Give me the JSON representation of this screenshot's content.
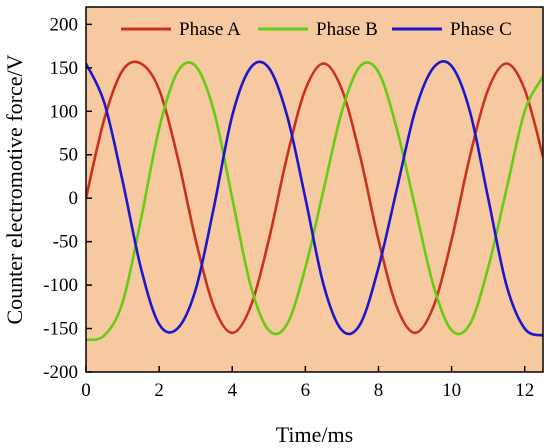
{
  "chart_data": {
    "type": "line",
    "xlabel": "Time/ms",
    "ylabel": "Counter electromotive force/V",
    "xlim": [
      0,
      12.5
    ],
    "ylim": [
      -200,
      220
    ],
    "xticks": [
      0,
      2,
      4,
      6,
      8,
      10,
      12
    ],
    "yticks": [
      -200,
      -150,
      -100,
      -50,
      0,
      50,
      100,
      150,
      200
    ],
    "grid": false,
    "legend_position": "top",
    "plot_background": "#f7c9a0",
    "series": [
      {
        "name": "Phase A",
        "color": "#c8321e",
        "x": [
          0,
          0.5,
          1.0,
          1.5,
          2.0,
          2.5,
          3.0,
          3.5,
          4.0,
          4.5,
          5.0,
          5.5,
          6.0,
          6.5,
          7.0,
          7.5,
          8.0,
          8.5,
          9.0,
          9.5,
          10.0,
          10.5,
          11.0,
          11.5,
          12.0,
          12.5
        ],
        "values": [
          0,
          91,
          147,
          155,
          125,
          48,
          -48,
          -125,
          -155,
          -125,
          -48,
          48,
          125,
          155,
          125,
          48,
          -48,
          -125,
          -155,
          -125,
          -48,
          48,
          125,
          155,
          125,
          48
        ]
      },
      {
        "name": "Phase B",
        "color": "#66cc11",
        "x": [
          0,
          0.5,
          1.0,
          1.5,
          2.0,
          2.5,
          3.0,
          3.5,
          4.0,
          4.5,
          5.0,
          5.5,
          6.0,
          6.5,
          7.0,
          7.5,
          8.0,
          8.5,
          9.0,
          9.5,
          10.0,
          10.5,
          11.0,
          11.5,
          12.0,
          12.5
        ],
        "values": [
          -163,
          -158,
          -120,
          -25,
          80,
          145,
          152,
          100,
          0,
          -100,
          -152,
          -145,
          -80,
          10,
          100,
          152,
          145,
          80,
          -10,
          -100,
          -152,
          -145,
          -80,
          10,
          100,
          140
        ]
      },
      {
        "name": "Phase C",
        "color": "#1a17cc",
        "x": [
          0,
          0.5,
          1.0,
          1.5,
          2.0,
          2.5,
          3.0,
          3.5,
          4.0,
          4.5,
          5.0,
          5.5,
          6.0,
          6.5,
          7.0,
          7.5,
          8.0,
          8.5,
          9.0,
          9.5,
          10.0,
          10.5,
          11.0,
          11.5,
          12.0,
          12.5
        ],
        "values": [
          155,
          110,
          20,
          -80,
          -145,
          -150,
          -105,
          -10,
          95,
          150,
          150,
          95,
          0,
          -100,
          -152,
          -145,
          -80,
          10,
          100,
          150,
          152,
          100,
          0,
          -100,
          -150,
          -158
        ]
      }
    ]
  }
}
